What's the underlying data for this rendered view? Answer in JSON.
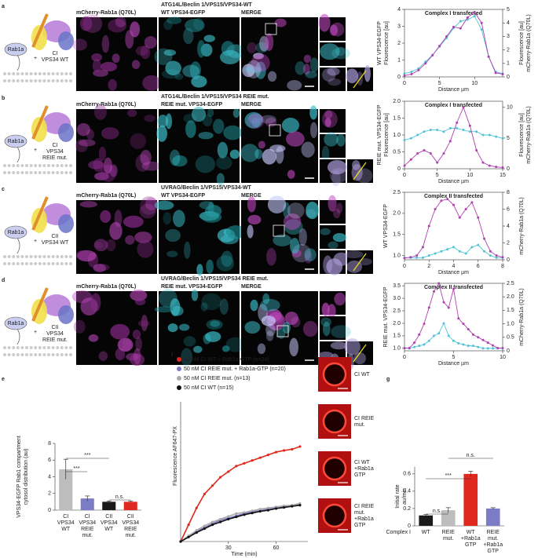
{
  "figure": {
    "rows": [
      {
        "letter": "a",
        "title": "ATG14L/Beclin 1/VPS15/VPS34-WT",
        "channel1": "mCherry-Rab1a (Q70L)",
        "channel2": "WT VPS34-EGFP",
        "merge": "MERGE",
        "rab": "Rab1a",
        "plus": "+",
        "complex": [
          "CI",
          "VPS34 WT"
        ]
      },
      {
        "letter": "b",
        "title": "ATG14L/Beclin 1/VPS15/VPS34 REIE mut.",
        "channel1": "mCherry-Rab1a (Q70L)",
        "channel2": "REIE mut. VPS34-EGFP",
        "merge": "MERGE",
        "rab": "Rab1a",
        "plus": "+",
        "complex": [
          "CI",
          "VPS34",
          "REIE mut."
        ]
      },
      {
        "letter": "c",
        "title": "UVRAG/Beclin 1/VPS15/VPS34-WT",
        "channel1": "mCherry-Rab1a (Q70L)",
        "channel2": "WT VPS34-EGFP",
        "merge": "MERGE",
        "rab": "Rab1a",
        "plus": "+",
        "complex": [
          "CII",
          "VPS34 WT"
        ]
      },
      {
        "letter": "d",
        "title": "UVRAG/Beclin 1/VPS15/VPS34 REIE mut.",
        "channel1": "mCherry-Rab1a (Q70L)",
        "channel2": "REIE mut. VPS34-EGFP",
        "merge": "MERGE",
        "rab": "Rab1a",
        "plus": "+",
        "complex": [
          "CII",
          "VPS34",
          "REIE mut."
        ]
      }
    ],
    "letter_e": "e",
    "letter_f": "f",
    "letter_g": "g",
    "f_images": [
      [
        "CI WT"
      ],
      [
        "CI REIE",
        "mut."
      ],
      [
        "CI WT",
        "+Rab1a",
        "GTP"
      ],
      [
        "CI REIE",
        "mut.",
        "+Rab1a",
        "GTP"
      ]
    ]
  },
  "chart_data": [
    {
      "type": "profile",
      "title": "Complex I transfected",
      "x_label": "Distance µm",
      "y_label": "WT VPS34-EGFP",
      "y_axis_title": "Flourescence [au]",
      "y2_axis_title": "Flourescence [au]",
      "y2_label": "mCherry-Rab1a (Q70L)",
      "x": [
        0,
        1,
        2,
        3,
        4,
        5,
        6,
        7,
        8,
        9,
        10,
        11,
        12,
        13,
        14
      ],
      "xlim": [
        0,
        14
      ],
      "xticks": [
        0,
        5,
        10
      ],
      "ylim": [
        0,
        4
      ],
      "yticks": [
        0,
        1,
        2,
        3,
        4
      ],
      "y2lim": [
        0,
        5
      ],
      "y2ticks": [
        0,
        1,
        2,
        3,
        4,
        5
      ],
      "series": [
        {
          "color": "#4fc3d6",
          "values": [
            0.2,
            0.3,
            0.5,
            0.9,
            1.3,
            1.8,
            2.3,
            2.9,
            3.3,
            3.4,
            3.6,
            2.8,
            1.2,
            0.3,
            0.2
          ]
        },
        {
          "color": "#b040b0",
          "axis": "y2",
          "values": [
            0.1,
            0.2,
            0.5,
            1.0,
            1.6,
            2.3,
            3.0,
            3.7,
            3.6,
            4.4,
            4.8,
            4.0,
            1.5,
            0.3,
            0.2
          ]
        }
      ]
    },
    {
      "type": "profile",
      "title": "Complex I transfected",
      "x_label": "Distance µm",
      "y_label": "REIE mut. VPS34-EGFP",
      "y_axis_title": "Flourescence [au]",
      "y2_axis_title": "Flourescence [au]",
      "y2_label": "mCherry-Rab1a (Q70L)",
      "x": [
        0,
        1,
        2,
        3,
        4,
        5,
        6,
        7,
        8,
        9,
        10,
        11,
        12,
        13,
        14,
        15
      ],
      "xlim": [
        0,
        15
      ],
      "xticks": [
        0,
        5,
        10,
        15
      ],
      "ylim": [
        0,
        2
      ],
      "yticks": [
        0,
        0.5,
        {
          "value": 1,
          "label": "1.0"
        },
        1.5,
        {
          "value": 2,
          "label": "2.0"
        }
      ],
      "y2lim": [
        0,
        11
      ],
      "y2ticks": [
        0,
        5,
        10
      ],
      "series": [
        {
          "color": "#4fc3d6",
          "values": [
            0.85,
            0.9,
            1.0,
            1.1,
            1.15,
            1.15,
            1.1,
            1.2,
            1.2,
            1.15,
            1.1,
            1.1,
            1.0,
            1.0,
            0.95,
            0.9
          ]
        },
        {
          "color": "#b040b0",
          "axis": "y2",
          "values": [
            0.5,
            1.5,
            2.5,
            3,
            2.5,
            1,
            2.5,
            4.5,
            7.5,
            10,
            7,
            3,
            1,
            0.5,
            0.3,
            0.2
          ]
        }
      ]
    },
    {
      "type": "profile",
      "title": "Complex II transfected",
      "x_label": "Distance µm",
      "y_label": "WT VPS34-EGFP",
      "y2_label": "mCherry-Rab1a (Q70L)",
      "x": [
        0,
        0.5,
        1,
        1.5,
        2,
        2.5,
        3,
        3.5,
        4,
        4.5,
        5,
        5.5,
        6,
        6.5,
        7,
        7.5,
        8
      ],
      "xlim": [
        0,
        8
      ],
      "xticks": [
        0,
        2,
        4,
        6,
        8
      ],
      "ylim": [
        0.9,
        2.5
      ],
      "yticks": [
        {
          "value": 1,
          "label": "1.0"
        },
        1.5,
        {
          "value": 2,
          "label": "2.0"
        },
        2.5
      ],
      "y2lim": [
        0,
        8
      ],
      "y2ticks": [
        0,
        2,
        4,
        6,
        8
      ],
      "series": [
        {
          "color": "#4fc3d6",
          "values": [
            0.95,
            0.95,
            0.95,
            0.95,
            1.0,
            1.05,
            1.1,
            1.15,
            1.2,
            1.1,
            1.05,
            1.2,
            1.25,
            1.1,
            1.0,
            0.95,
            0.95
          ]
        },
        {
          "color": "#b040b0",
          "axis": "y2",
          "values": [
            0.2,
            0.3,
            0.5,
            1.5,
            4,
            6,
            7,
            7.2,
            6.5,
            5,
            6,
            6.8,
            5,
            2.5,
            1,
            0.5,
            0.3
          ]
        }
      ]
    },
    {
      "type": "profile",
      "title": "Complex II transfected",
      "x_label": "Distance µm",
      "y_label": "REIE mut. VPS34-EGFP",
      "y2_label": "mCherry-Rab1a (Q70L)",
      "x": [
        0,
        0.5,
        1,
        1.5,
        2,
        2.5,
        3,
        3.5,
        4,
        4.5,
        5,
        5.5,
        6,
        6.5,
        7,
        7.5,
        8,
        8.5,
        9,
        9.5,
        10
      ],
      "xlim": [
        0,
        10
      ],
      "xticks": [
        0,
        5,
        10
      ],
      "ylim": [
        0.9,
        3.6
      ],
      "yticks": [
        {
          "value": 1,
          "label": "1.0"
        },
        1.5,
        {
          "value": 2,
          "label": "2.0"
        },
        2.5,
        {
          "value": 3,
          "label": "3.0"
        },
        3.5
      ],
      "y2lim": [
        0,
        2.5
      ],
      "y2ticks": [
        0,
        0.5,
        {
          "value": 1,
          "label": "1.0"
        },
        1.5,
        {
          "value": 2,
          "label": "2.0"
        },
        2.5
      ],
      "series": [
        {
          "color": "#4fc3d6",
          "values": [
            1.0,
            1.0,
            1.05,
            1.1,
            1.15,
            1.3,
            1.5,
            1.6,
            2.0,
            1.5,
            1.3,
            1.2,
            1.15,
            1.1,
            1.1,
            1.05,
            1.0,
            1.0,
            1.0,
            1.0,
            1.0
          ]
        },
        {
          "color": "#b040b0",
          "axis": "y2",
          "values": [
            0.1,
            0.1,
            0.3,
            0.6,
            1.0,
            1.6,
            2.2,
            2.5,
            1.8,
            1.6,
            2.3,
            1.2,
            1.0,
            0.8,
            0.6,
            0.5,
            0.4,
            0.3,
            0.2,
            0.1,
            0.1
          ]
        }
      ]
    },
    {
      "type": "bar",
      "y_label": [
        "VPS34-EGFP Rab1 compartment",
        "cytosol distribution (au)"
      ],
      "categories": [
        [
          "CI",
          "VPS34",
          "WT"
        ],
        [
          "CI",
          "VPS34",
          "REIE",
          "mut."
        ],
        [
          "CII",
          "VPS34",
          "WT"
        ],
        [
          "CII",
          "VPS34",
          "REIE",
          "mut."
        ]
      ],
      "values": [
        4.9,
        1.4,
        1.0,
        1.0
      ],
      "errors": [
        1.2,
        0.3,
        0.1,
        0.1
      ],
      "colors": [
        "#bdbdbd",
        "#7b7bc6",
        "#1a1a1a",
        "#e0281e"
      ],
      "ylim": [
        0,
        8
      ],
      "yticks": [
        0,
        2,
        4,
        6,
        8
      ],
      "annotations": [
        "***",
        "***",
        "n.s."
      ]
    },
    {
      "type": "line",
      "y_label": "Fluorescence AF647-PX",
      "x_label": "Time (min)",
      "x": [
        0,
        5,
        10,
        15,
        20,
        25,
        30,
        35,
        40,
        45,
        50,
        55,
        60,
        65,
        70,
        75
      ],
      "xlim": [
        0,
        80
      ],
      "xticks": [
        30,
        60
      ],
      "ylim": [
        0,
        25
      ],
      "series": [
        {
          "name": "50 nM CI WT + Rab1a-GTP (n=24)",
          "color": "#e0281e",
          "values": [
            0,
            3,
            6,
            8.5,
            10,
            11.5,
            12.5,
            13.5,
            14,
            14.5,
            15,
            15.5,
            16,
            16.3,
            16.5,
            17
          ]
        },
        {
          "name": "50 nM CI REIE mut. + Rab1a-GTP (n=20)",
          "color": "#7b7bc6",
          "values": [
            0,
            1,
            1.8,
            2.5,
            3.2,
            3.8,
            4.2,
            4.6,
            5,
            5.3,
            5.5,
            5.8,
            6,
            6.2,
            6.4,
            6.6
          ]
        },
        {
          "name": "50 nM CI REIE mut. (n=13)",
          "color": "#aaaaaa",
          "values": [
            0,
            1,
            2,
            2.8,
            3.5,
            4,
            4.5,
            5,
            5.2,
            5.5,
            5.8,
            6,
            6.2,
            6.4,
            6.5,
            6.8
          ]
        },
        {
          "name": "50 nM CI WT (n=15)",
          "color": "#111111",
          "values": [
            0,
            0.8,
            1.6,
            2.3,
            3,
            3.5,
            4,
            4.4,
            4.8,
            5.1,
            5.4,
            5.6,
            5.9,
            6.1,
            6.3,
            6.5
          ]
        }
      ]
    },
    {
      "type": "bar",
      "y_label": [
        "Initial rate",
        "au/min"
      ],
      "row_label": "Complex I",
      "categories": [
        [
          "WT"
        ],
        [
          "REIE",
          "mut."
        ],
        [
          "WT",
          "+Rab1a",
          "GTP"
        ],
        [
          "REIE",
          "mut.",
          "+Rab1a",
          "GTP"
        ]
      ],
      "values": [
        0.12,
        0.18,
        0.6,
        0.2
      ],
      "errors": [
        0.01,
        0.03,
        0.03,
        0.01
      ],
      "colors": [
        "#1a1a1a",
        "#bdbdbd",
        "#e0281e",
        "#7b7bc6"
      ],
      "ylim": [
        0,
        0.68
      ],
      "yticks": [
        0,
        0.2,
        0.4,
        0.6
      ],
      "annotations": [
        "n.s.",
        "***",
        "n.s."
      ]
    }
  ]
}
